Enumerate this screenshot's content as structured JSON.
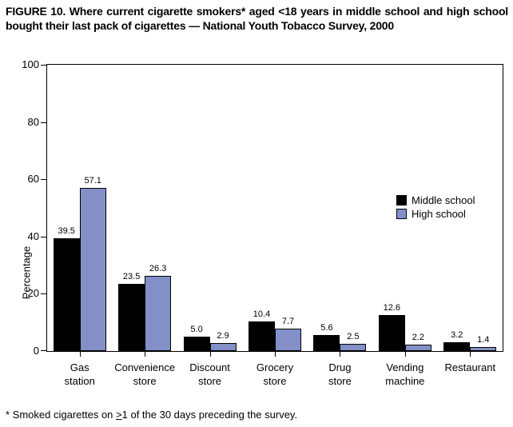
{
  "title": "FIGURE 10. Where current cigarette smokers* aged <18 years in middle school and high school bought their last pack of cigarettes — National Youth Tobacco Survey, 2000",
  "footnote": {
    "prefix": "* Smoked cigarettes on ",
    "geq_symbol": ">",
    "suffix": "1 of the 30 days preceding the survey."
  },
  "chart_data": {
    "type": "bar",
    "title": "FIGURE 10. Where current cigarette smokers aged <18 years in middle school and high school bought their last pack of cigarettes — National Youth Tobacco Survey, 2000",
    "categories": [
      "Gas\nstation",
      "Convenience\nstore",
      "Discount\nstore",
      "Grocery\nstore",
      "Drug\nstore",
      "Vending\nmachine",
      "Restaurant"
    ],
    "series": [
      {
        "name": "Middle school",
        "color": "#000000",
        "values": [
          39.5,
          23.5,
          5.0,
          10.4,
          5.6,
          12.6,
          3.2
        ]
      },
      {
        "name": "High school",
        "color": "#8290c7",
        "values": [
          57.1,
          26.3,
          2.9,
          7.7,
          2.5,
          2.2,
          1.4
        ]
      }
    ],
    "xlabel": "",
    "ylabel": "Percentage",
    "ylim": [
      0,
      100
    ],
    "yticks": [
      0,
      20,
      40,
      60,
      80,
      100
    ],
    "grid": false,
    "legend_position": "inside-right",
    "value_labels": true,
    "bar_outline_color": "#000000"
  }
}
